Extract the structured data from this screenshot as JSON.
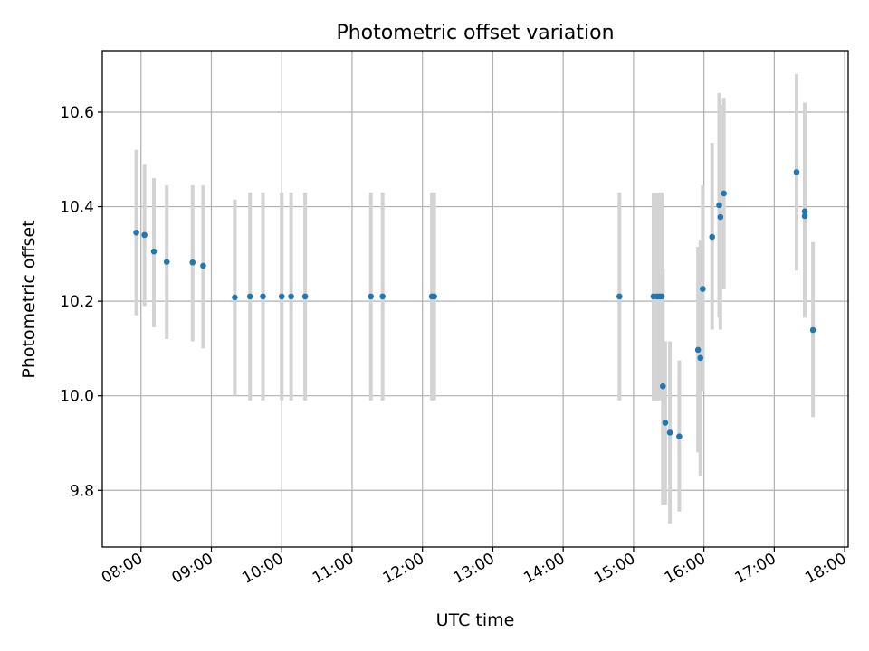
{
  "chart_data": {
    "type": "scatter",
    "title": "Photometric offset variation",
    "xlabel": "UTC time",
    "ylabel": "Photometric offset",
    "x_ticks": [
      "08:00",
      "09:00",
      "10:00",
      "11:00",
      "12:00",
      "13:00",
      "14:00",
      "15:00",
      "16:00",
      "17:00",
      "18:00"
    ],
    "y_ticks": [
      "9.8",
      "10.0",
      "10.2",
      "10.4",
      "10.6"
    ],
    "xlim": [
      "07:27",
      "18:03"
    ],
    "ylim": [
      9.68,
      10.73
    ],
    "grid": true,
    "colors": {
      "points": "#1f77b4",
      "errorbars": "#d3d3d3",
      "grid": "#b0b0b0"
    },
    "points": [
      {
        "x": "07:56",
        "y": 10.345,
        "err_low": 10.17,
        "err_high": 10.52
      },
      {
        "x": "08:03",
        "y": 10.34,
        "err_low": 10.19,
        "err_high": 10.49
      },
      {
        "x": "08:11",
        "y": 10.305,
        "err_low": 10.145,
        "err_high": 10.46
      },
      {
        "x": "08:22",
        "y": 10.283,
        "err_low": 10.12,
        "err_high": 10.445
      },
      {
        "x": "08:44",
        "y": 10.282,
        "err_low": 10.115,
        "err_high": 10.445
      },
      {
        "x": "08:53",
        "y": 10.275,
        "err_low": 10.1,
        "err_high": 10.445
      },
      {
        "x": "09:20",
        "y": 10.208,
        "err_low": 10.0,
        "err_high": 10.415
      },
      {
        "x": "09:33",
        "y": 10.21,
        "err_low": 9.99,
        "err_high": 10.43
      },
      {
        "x": "09:44",
        "y": 10.21,
        "err_low": 9.99,
        "err_high": 10.43
      },
      {
        "x": "10:00",
        "y": 10.21,
        "err_low": 9.99,
        "err_high": 10.43
      },
      {
        "x": "10:08",
        "y": 10.21,
        "err_low": 9.99,
        "err_high": 10.43
      },
      {
        "x": "10:20",
        "y": 10.21,
        "err_low": 9.99,
        "err_high": 10.43
      },
      {
        "x": "11:16",
        "y": 10.21,
        "err_low": 9.99,
        "err_high": 10.43
      },
      {
        "x": "11:26",
        "y": 10.21,
        "err_low": 9.99,
        "err_high": 10.43
      },
      {
        "x": "12:08",
        "y": 10.21,
        "err_low": 9.99,
        "err_high": 10.43
      },
      {
        "x": "12:10",
        "y": 10.21,
        "err_low": 9.99,
        "err_high": 10.43
      },
      {
        "x": "14:48",
        "y": 10.21,
        "err_low": 9.99,
        "err_high": 10.43
      },
      {
        "x": "15:17",
        "y": 10.21,
        "err_low": 9.99,
        "err_high": 10.43
      },
      {
        "x": "15:20",
        "y": 10.21,
        "err_low": 9.99,
        "err_high": 10.43
      },
      {
        "x": "15:22",
        "y": 10.21,
        "err_low": 9.99,
        "err_high": 10.43
      },
      {
        "x": "15:24",
        "y": 10.21,
        "err_low": 9.99,
        "err_high": 10.43
      },
      {
        "x": "15:25",
        "y": 10.02,
        "err_low": 9.77,
        "err_high": 10.27
      },
      {
        "x": "15:27",
        "y": 9.943,
        "err_low": 9.77,
        "err_high": 10.115
      },
      {
        "x": "15:31",
        "y": 9.922,
        "err_low": 9.73,
        "err_high": 10.115
      },
      {
        "x": "15:39",
        "y": 9.914,
        "err_low": 9.755,
        "err_high": 10.075
      },
      {
        "x": "15:55",
        "y": 10.097,
        "err_low": 9.88,
        "err_high": 10.315
      },
      {
        "x": "15:57",
        "y": 10.08,
        "err_low": 9.83,
        "err_high": 10.33
      },
      {
        "x": "15:59",
        "y": 10.226,
        "err_low": 10.01,
        "err_high": 10.445
      },
      {
        "x": "16:07",
        "y": 10.336,
        "err_low": 10.14,
        "err_high": 10.535
      },
      {
        "x": "16:13",
        "y": 10.403,
        "err_low": 10.165,
        "err_high": 10.64
      },
      {
        "x": "16:14",
        "y": 10.378,
        "err_low": 10.14,
        "err_high": 10.615
      },
      {
        "x": "16:17",
        "y": 10.428,
        "err_low": 10.225,
        "err_high": 10.63
      },
      {
        "x": "17:19",
        "y": 10.473,
        "err_low": 10.265,
        "err_high": 10.68
      },
      {
        "x": "17:26",
        "y": 10.39,
        "err_low": 10.175,
        "err_high": 10.62
      },
      {
        "x": "17:26",
        "y": 10.38,
        "err_low": 10.165,
        "err_high": 10.595
      },
      {
        "x": "17:33",
        "y": 10.139,
        "err_low": 9.955,
        "err_high": 10.325
      }
    ]
  }
}
